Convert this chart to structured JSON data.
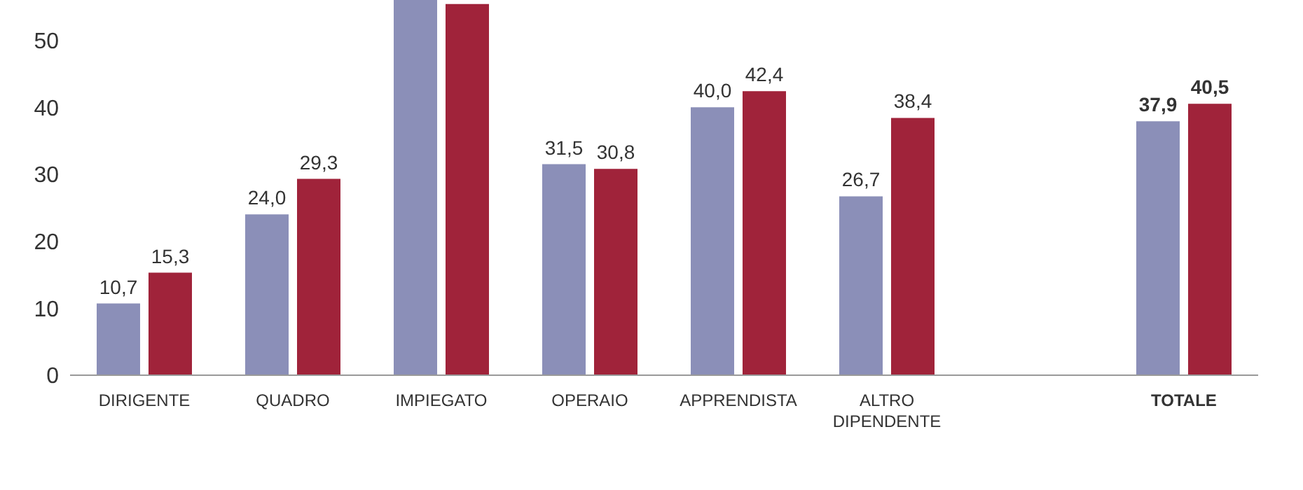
{
  "chart_data": {
    "type": "bar",
    "categories": [
      "DIRIGENTE",
      "QUADRO",
      "IMPIEGATO",
      "OPERAIO",
      "APPRENDISTA",
      "ALTRO DIPENDENTE",
      null,
      "TOTALE"
    ],
    "series": [
      {
        "color": "#8b8fb8",
        "values": [
          10.7,
          24.0,
          56,
          31.5,
          40.0,
          26.7,
          null,
          37.9
        ],
        "value_labels": [
          "10,7",
          "24,0",
          null,
          "31,5",
          "40,0",
          "26,7",
          null,
          "37,9"
        ]
      },
      {
        "color": "#a0233a",
        "values": [
          15.3,
          29.3,
          55.4,
          30.8,
          42.4,
          38.4,
          null,
          40.5
        ],
        "value_labels": [
          "15,3",
          "29,3",
          null,
          "30,8",
          "42,4",
          "38,4",
          null,
          "40,5"
        ]
      }
    ],
    "ylim": [
      0,
      56
    ],
    "yticks": [
      0,
      10,
      20,
      30,
      40,
      50
    ]
  }
}
